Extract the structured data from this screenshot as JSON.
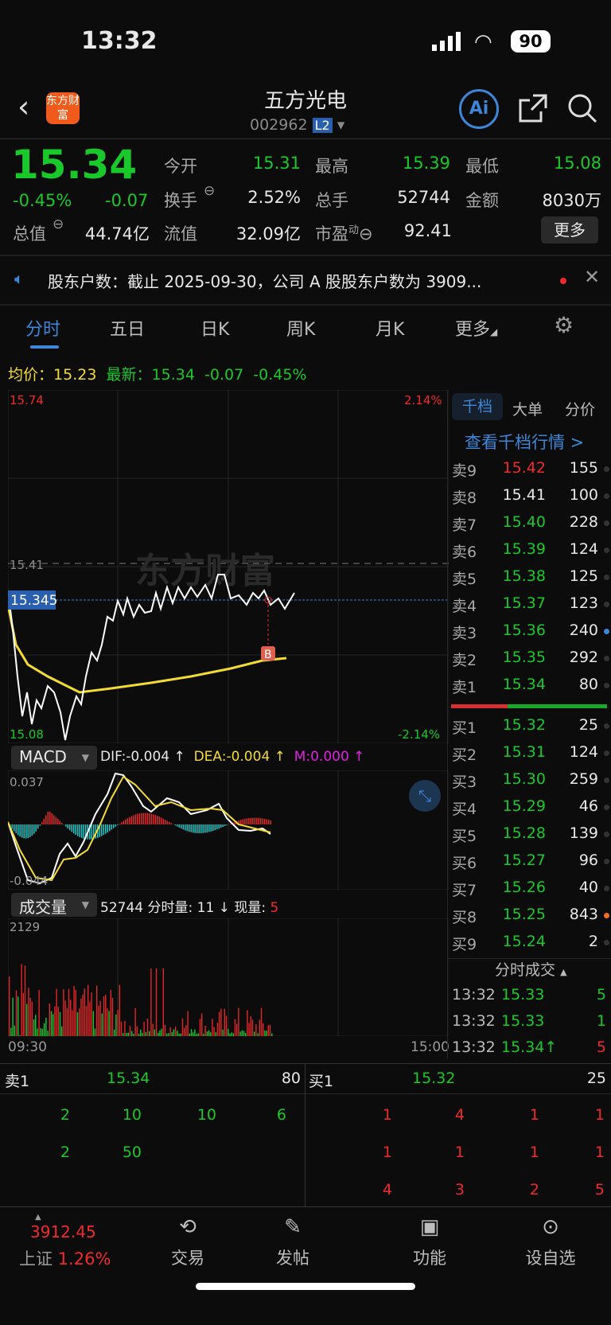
{
  "status": {
    "time": "13:32",
    "battery": "90"
  },
  "header": {
    "title": "五方光电",
    "code": "002962",
    "level": "L2",
    "logo_text": "东方财富",
    "ai": "Ai"
  },
  "quote": {
    "price": "15.34",
    "change_pct": "-0.45%",
    "change": "-0.07",
    "fields": [
      {
        "label": "今开",
        "value": "15.31"
      },
      {
        "label": "最高",
        "value": "15.39"
      },
      {
        "label": "最低",
        "value": "15.08"
      },
      {
        "label": "换手",
        "value": "2.52%"
      },
      {
        "label": "总手",
        "value": "52744"
      },
      {
        "label": "金额",
        "value": "8030万"
      },
      {
        "label": "总值",
        "value": "44.74亿"
      },
      {
        "label": "流值",
        "value": "32.09亿"
      },
      {
        "label": "市盈",
        "sup": "动",
        "value": "92.41"
      }
    ],
    "more": "更多"
  },
  "notice": {
    "text": "股东户数：截止 2025-09-30，公司 A 股股东户数为 3909..."
  },
  "tabs": [
    "分时",
    "五日",
    "日K",
    "周K",
    "月K",
    "更多"
  ],
  "chart": {
    "avg_label": "均价：",
    "avg": "15.23",
    "latest_label": "最新：",
    "latest": "15.34",
    "chg": "-0.07",
    "pct": "-0.45%",
    "y_top": "15.74",
    "y_bottom": "15.08",
    "pct_top": "2.14%",
    "pct_bottom": "-2.14%",
    "ref_price": "15.41",
    "cursor_price": "15.345",
    "marker": "B",
    "watermark": "东方财富",
    "colors": {
      "up": "#ee2a2a",
      "down": "#19c82a",
      "price_line": "#ffffff",
      "avg_line": "#f2dc30"
    }
  },
  "macd": {
    "name": "MACD",
    "dif": "DIF:-0.004 ↑",
    "dea": "DEA:-0.004 ↑",
    "m": "M:0.000 ↑",
    "top": "0.037",
    "bottom": "-0.044"
  },
  "volume": {
    "name": "成交量",
    "total": "52744",
    "minute_label": "分时量:",
    "minute": "11 ↓",
    "now_label": "现量:",
    "now": "5",
    "top": "2129",
    "start": "09:30",
    "end": "15:00"
  },
  "book": {
    "tabs": [
      "千档",
      "大单",
      "分价"
    ],
    "link": "查看千档行情 >",
    "asks": [
      {
        "k": "卖9",
        "p": "15.42",
        "q": "155",
        "c": "r"
      },
      {
        "k": "卖8",
        "p": "15.41",
        "q": "100",
        "c": "w"
      },
      {
        "k": "卖7",
        "p": "15.40",
        "q": "228",
        "c": "g"
      },
      {
        "k": "卖6",
        "p": "15.39",
        "q": "124",
        "c": "g"
      },
      {
        "k": "卖5",
        "p": "15.38",
        "q": "125",
        "c": "g"
      },
      {
        "k": "卖4",
        "p": "15.37",
        "q": "123",
        "c": "g"
      },
      {
        "k": "卖3",
        "p": "15.36",
        "q": "240",
        "c": "g",
        "dot": "#3d86d8"
      },
      {
        "k": "卖2",
        "p": "15.35",
        "q": "292",
        "c": "g"
      },
      {
        "k": "卖1",
        "p": "15.34",
        "q": "80",
        "c": "g"
      }
    ],
    "bids": [
      {
        "k": "买1",
        "p": "15.32",
        "q": "25",
        "c": "g"
      },
      {
        "k": "买2",
        "p": "15.31",
        "q": "124",
        "c": "g"
      },
      {
        "k": "买3",
        "p": "15.30",
        "q": "259",
        "c": "g"
      },
      {
        "k": "买4",
        "p": "15.29",
        "q": "46",
        "c": "g"
      },
      {
        "k": "买5",
        "p": "15.28",
        "q": "139",
        "c": "g"
      },
      {
        "k": "买6",
        "p": "15.27",
        "q": "96",
        "c": "g"
      },
      {
        "k": "买7",
        "p": "15.26",
        "q": "40",
        "c": "g"
      },
      {
        "k": "买8",
        "p": "15.25",
        "q": "843",
        "c": "g",
        "dot": "#f07020"
      },
      {
        "k": "买9",
        "p": "15.24",
        "q": "2",
        "c": "g"
      }
    ],
    "trades_title": "分时成交",
    "trades": [
      {
        "t": "13:32",
        "p": "15.33",
        "q": "5",
        "qc": "g"
      },
      {
        "t": "13:32",
        "p": "15.33",
        "q": "1",
        "qc": "g"
      },
      {
        "t": "13:32",
        "p": "15.34↑",
        "q": "5",
        "qc": "r"
      }
    ]
  },
  "queue": {
    "ask_label": "卖1",
    "ask_price": "15.34",
    "ask_qty": "80",
    "bid_label": "买1",
    "bid_price": "15.32",
    "bid_qty": "25",
    "ask_rows": [
      [
        "2",
        "10",
        "10",
        "6"
      ],
      [
        "2",
        "50",
        "",
        ""
      ]
    ],
    "bid_rows": [
      [
        "1",
        "4",
        "1",
        "1"
      ],
      [
        "1",
        "1",
        "1",
        "1"
      ],
      [
        "4",
        "3",
        "2",
        "5"
      ]
    ]
  },
  "bottom_nav": {
    "index_value": "3912.45",
    "index_name": "上证",
    "index_pct": "1.26%",
    "items": [
      "交易",
      "发帖",
      "功能",
      "设自选"
    ]
  }
}
